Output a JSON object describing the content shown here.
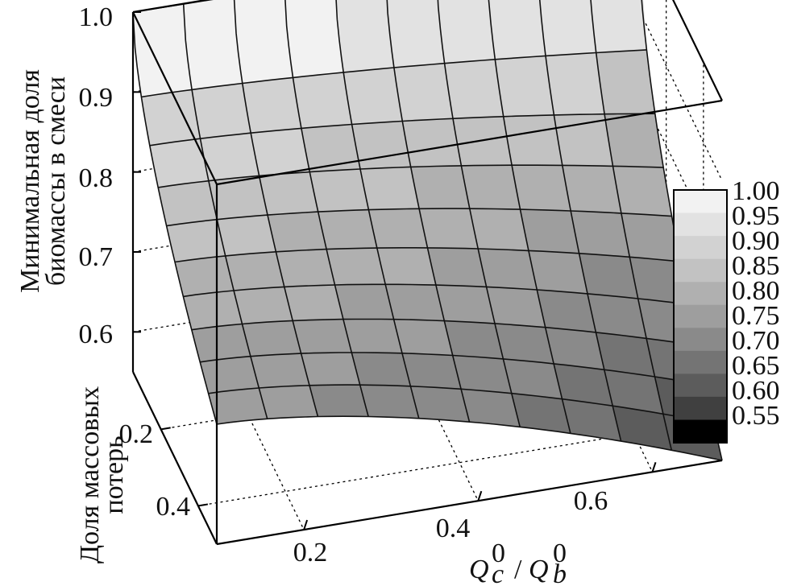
{
  "chart_data": {
    "type": "surface3d",
    "title": "",
    "zlabel_lines": [
      "Минимальная доля",
      "биомассы в смеси"
    ],
    "ylabel_lines": [
      "Доля массовых",
      "потерь"
    ],
    "xlabel": {
      "q": "Q",
      "c": "c",
      "b": "b",
      "sup": "0",
      "sep": "/"
    },
    "x_ticks": [
      "0.2",
      "0.4",
      "0.6"
    ],
    "y_ticks": [
      "0.2",
      "0.4"
    ],
    "z_ticks": [
      "1.0",
      "0.9",
      "0.8",
      "0.7",
      "0.6"
    ],
    "xlim": [
      0.1,
      0.68
    ],
    "ylim": [
      0.05,
      0.5
    ],
    "zlim": [
      0.55,
      1.0
    ],
    "grid": true,
    "colorbar": {
      "labels": [
        "1.00",
        "0.95",
        "0.90",
        "0.85",
        "0.80",
        "0.75",
        "0.70",
        "0.65",
        "0.60",
        "0.55"
      ],
      "colors": [
        "#f2f2f2",
        "#e2e2e2",
        "#d2d2d2",
        "#c2c2c2",
        "#b0b0b0",
        "#9e9e9e",
        "#8a8a8a",
        "#747474",
        "#5c5c5c",
        "#404040",
        "#000000"
      ]
    },
    "surface_corners": [
      {
        "x": 0.1,
        "y": 0.05,
        "z": 1.0
      },
      {
        "x": 0.68,
        "y": 0.05,
        "z": 0.995
      },
      {
        "x": 0.1,
        "y": 0.5,
        "z": 0.7
      },
      {
        "x": 0.68,
        "y": 0.5,
        "z": 0.55
      }
    ]
  }
}
